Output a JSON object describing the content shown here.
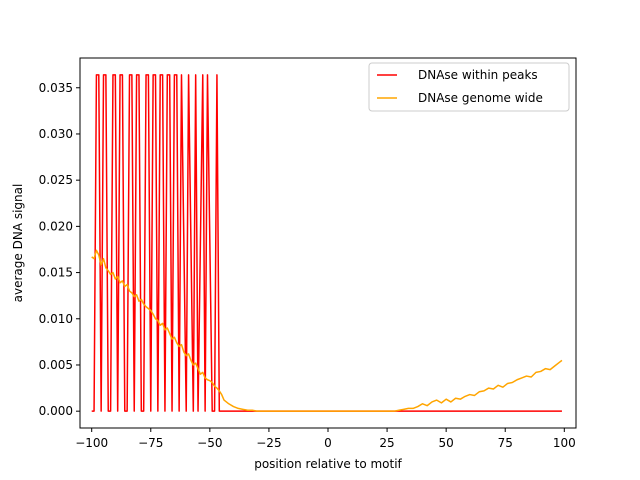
{
  "chart_data": {
    "type": "line",
    "title": "",
    "xlabel": "position relative to motif",
    "ylabel": "average DNA signal",
    "xlim": [
      -104.95,
      104.95
    ],
    "ylim": [
      -0.00182,
      0.03822
    ],
    "xticks": [
      -100,
      -75,
      -50,
      -25,
      0,
      25,
      50,
      75,
      100
    ],
    "xtick_labels": [
      "−100",
      "−75",
      "−50",
      "−25",
      "0",
      "25",
      "50",
      "75",
      "100"
    ],
    "yticks": [
      0.0,
      0.005,
      0.01,
      0.015,
      0.02,
      0.025,
      0.03,
      0.035
    ],
    "ytick_labels": [
      "0.000",
      "0.005",
      "0.010",
      "0.015",
      "0.020",
      "0.025",
      "0.030",
      "0.035"
    ],
    "grid": false,
    "legend_position": "top-right",
    "series": [
      {
        "name": "DNAse within peaks",
        "color": "#ff0000",
        "x": [
          -100,
          -99,
          -98,
          -97,
          -96,
          -95,
          -94,
          -93,
          -92,
          -91,
          -90,
          -89,
          -88,
          -87,
          -86,
          -85,
          -84,
          -83,
          -82,
          -81,
          -80,
          -79,
          -78,
          -77,
          -76,
          -75,
          -74,
          -73,
          -72,
          -71,
          -70,
          -69,
          -68,
          -67,
          -66,
          -65,
          -64,
          -63,
          -62,
          -61,
          -60,
          -59,
          -58,
          -57,
          -56,
          -55,
          -54,
          -53,
          -52,
          -51,
          -50,
          -49,
          -48,
          -47,
          -46,
          -45,
          -40,
          -30,
          -20,
          -10,
          0,
          10,
          20,
          30,
          40,
          50,
          60,
          70,
          80,
          90,
          99
        ],
        "values": [
          0,
          0,
          0.0364,
          0.0364,
          0,
          0.0364,
          0.0364,
          0,
          0,
          0.0364,
          0.0364,
          0,
          0.0364,
          0.0364,
          0,
          0,
          0.0364,
          0.0364,
          0,
          0.0364,
          0.0364,
          0,
          0,
          0.0364,
          0.0364,
          0,
          0.0364,
          0.0364,
          0,
          0.0364,
          0.0364,
          0,
          0.0364,
          0.0364,
          0,
          0.0364,
          0.0364,
          0,
          0.0364,
          0.0182,
          0,
          0.0364,
          0.0182,
          0,
          0.0364,
          0,
          0.0182,
          0.0364,
          0,
          0.0364,
          0.0182,
          0,
          0,
          0.0364,
          0,
          0,
          0,
          0,
          0,
          0,
          0,
          0,
          0,
          0,
          0,
          0,
          0,
          0,
          0,
          0,
          0
        ]
      },
      {
        "name": "DNAse genome wide",
        "color": "#ffa500",
        "x": [
          -100,
          -99,
          -98,
          -97,
          -96,
          -95,
          -94,
          -93,
          -92,
          -91,
          -90,
          -89,
          -88,
          -87,
          -86,
          -85,
          -84,
          -83,
          -82,
          -81,
          -80,
          -79,
          -78,
          -77,
          -76,
          -75,
          -74,
          -73,
          -72,
          -71,
          -70,
          -69,
          -68,
          -67,
          -66,
          -65,
          -64,
          -63,
          -62,
          -61,
          -60,
          -59,
          -58,
          -57,
          -56,
          -55,
          -54,
          -53,
          -52,
          -51,
          -50,
          -49,
          -48,
          -47,
          -46,
          -45,
          -44,
          -42,
          -40,
          -38,
          -36,
          -34,
          -32,
          -30,
          -28,
          -26,
          -24,
          -22,
          -20,
          -15,
          -10,
          -5,
          0,
          5,
          10,
          15,
          20,
          25,
          28,
          30,
          32,
          34,
          36,
          38,
          40,
          42,
          44,
          46,
          48,
          50,
          52,
          54,
          56,
          58,
          60,
          62,
          64,
          66,
          68,
          70,
          72,
          74,
          76,
          78,
          80,
          82,
          84,
          86,
          88,
          90,
          92,
          94,
          96,
          98,
          99
        ],
        "values": [
          0.0167,
          0.0165,
          0.0174,
          0.0169,
          0.0158,
          0.0165,
          0.0155,
          0.0152,
          0.0148,
          0.015,
          0.0143,
          0.0146,
          0.0139,
          0.0141,
          0.0135,
          0.0137,
          0.013,
          0.0128,
          0.0124,
          0.0126,
          0.0119,
          0.0121,
          0.0116,
          0.0113,
          0.0111,
          0.0109,
          0.0105,
          0.01,
          0.0098,
          0.0093,
          0.0095,
          0.0088,
          0.009,
          0.0084,
          0.0078,
          0.008,
          0.0074,
          0.007,
          0.0072,
          0.0064,
          0.006,
          0.0062,
          0.0055,
          0.005,
          0.0052,
          0.0046,
          0.004,
          0.0042,
          0.0036,
          0.0034,
          0.0033,
          0.0031,
          0.0027,
          0.0025,
          0.0022,
          0.0018,
          0.0012,
          0.0008,
          0.0005,
          0.0003,
          0.0002,
          0.0001,
          0.0001,
          0.0,
          0.0,
          0.0,
          0.0,
          0.0,
          0.0,
          0.0,
          0.0,
          0.0,
          0.0,
          0.0,
          0.0,
          0.0,
          0.0,
          0.0,
          0.0,
          0.0001,
          0.0002,
          0.0003,
          0.0003,
          0.0005,
          0.0008,
          0.0006,
          0.001,
          0.0012,
          0.0009,
          0.0013,
          0.001,
          0.0014,
          0.0013,
          0.0016,
          0.0018,
          0.0017,
          0.0021,
          0.0022,
          0.0025,
          0.0024,
          0.0028,
          0.0026,
          0.003,
          0.0031,
          0.0034,
          0.0036,
          0.0038,
          0.0037,
          0.0042,
          0.0043,
          0.0046,
          0.0045,
          0.0049,
          0.0053,
          0.0055
        ]
      }
    ]
  }
}
